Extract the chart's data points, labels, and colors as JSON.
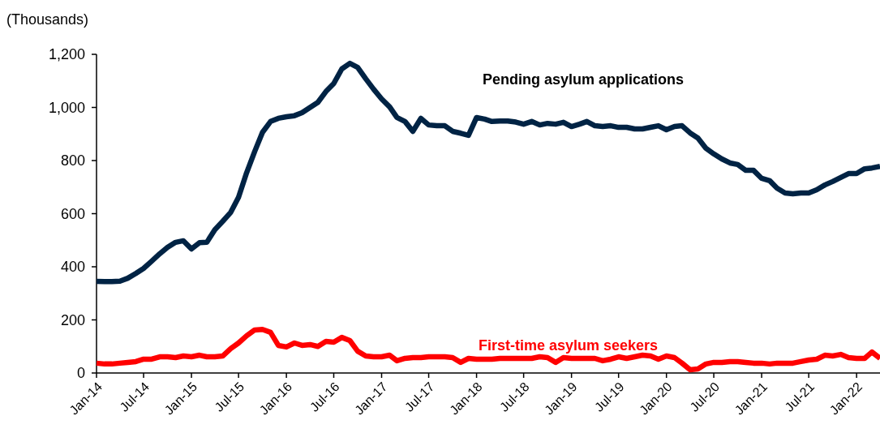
{
  "chart_data": {
    "type": "line",
    "ylabel": "(Thousands)",
    "x": [
      "2014-01",
      "2014-02",
      "2014-03",
      "2014-04",
      "2014-05",
      "2014-06",
      "2014-07",
      "2014-08",
      "2014-09",
      "2014-10",
      "2014-11",
      "2014-12",
      "2015-01",
      "2015-02",
      "2015-03",
      "2015-04",
      "2015-05",
      "2015-06",
      "2015-07",
      "2015-08",
      "2015-09",
      "2015-10",
      "2015-11",
      "2015-12",
      "2016-01",
      "2016-02",
      "2016-03",
      "2016-04",
      "2016-05",
      "2016-06",
      "2016-07",
      "2016-08",
      "2016-09",
      "2016-10",
      "2016-11",
      "2016-12",
      "2017-01",
      "2017-02",
      "2017-03",
      "2017-04",
      "2017-05",
      "2017-06",
      "2017-07",
      "2017-08",
      "2017-09",
      "2017-10",
      "2017-11",
      "2017-12",
      "2018-01",
      "2018-02",
      "2018-03",
      "2018-04",
      "2018-05",
      "2018-06",
      "2018-07",
      "2018-08",
      "2018-09",
      "2018-10",
      "2018-11",
      "2018-12",
      "2019-01",
      "2019-02",
      "2019-03",
      "2019-04",
      "2019-05",
      "2019-06",
      "2019-07",
      "2019-08",
      "2019-09",
      "2019-10",
      "2019-11",
      "2019-12",
      "2020-01",
      "2020-02",
      "2020-03",
      "2020-04",
      "2020-05",
      "2020-06",
      "2020-07",
      "2020-08",
      "2020-09",
      "2020-10",
      "2020-11",
      "2020-12",
      "2021-01",
      "2021-02",
      "2021-03",
      "2021-04",
      "2021-05",
      "2021-06",
      "2021-07",
      "2021-08",
      "2021-09",
      "2021-10",
      "2021-11",
      "2021-12",
      "2022-01",
      "2022-02",
      "2022-03",
      "2022-04"
    ],
    "series": [
      {
        "name": "Pending asylum applications",
        "color": "#002344",
        "values": [
          345,
          344,
          344,
          346,
          357,
          375,
          394,
          421,
          449,
          473,
          492,
          498,
          467,
          491,
          492,
          540,
          571,
          605,
          662,
          754,
          834,
          906,
          947,
          959,
          965,
          969,
          980,
          1000,
          1019,
          1060,
          1090,
          1145,
          1166,
          1151,
          1108,
          1069,
          1032,
          1002,
          962,
          947,
          910,
          959,
          934,
          931,
          931,
          910,
          903,
          895,
          962,
          956,
          947,
          949,
          949,
          945,
          937,
          947,
          934,
          940,
          937,
          944,
          928,
          937,
          947,
          931,
          928,
          931,
          925,
          925,
          919,
          919,
          925,
          931,
          916,
          928,
          931,
          904,
          885,
          846,
          825,
          806,
          791,
          785,
          763,
          763,
          733,
          724,
          696,
          678,
          675,
          678,
          678,
          690,
          708,
          721,
          736,
          751,
          751,
          769,
          772,
          778
        ]
      },
      {
        "name": "First-time asylum seekers",
        "color": "#ff0000",
        "values": [
          37,
          34,
          34,
          37,
          40,
          43,
          52,
          52,
          61,
          61,
          58,
          64,
          61,
          67,
          61,
          61,
          64,
          92,
          113,
          140,
          162,
          164,
          153,
          104,
          98,
          113,
          104,
          107,
          100,
          119,
          116,
          134,
          122,
          82,
          64,
          61,
          61,
          67,
          46,
          55,
          58,
          58,
          61,
          61,
          61,
          58,
          40,
          55,
          52,
          52,
          52,
          55,
          55,
          55,
          55,
          55,
          61,
          58,
          40,
          58,
          55,
          55,
          55,
          55,
          46,
          52,
          61,
          55,
          61,
          67,
          64,
          52,
          64,
          58,
          37,
          12,
          15,
          34,
          40,
          40,
          43,
          43,
          40,
          37,
          37,
          34,
          37,
          37,
          37,
          43,
          49,
          52,
          67,
          64,
          70,
          58,
          55,
          55,
          79,
          55
        ]
      }
    ],
    "xlim": [
      "2014-01",
      "2022-04"
    ],
    "xticks": [
      {
        "value": "2014-01",
        "label": "Jan-14"
      },
      {
        "value": "2014-07",
        "label": "Jul-14"
      },
      {
        "value": "2015-01",
        "label": "Jan-15"
      },
      {
        "value": "2015-07",
        "label": "Jul-15"
      },
      {
        "value": "2016-01",
        "label": "Jan-16"
      },
      {
        "value": "2016-07",
        "label": "Jul-16"
      },
      {
        "value": "2017-01",
        "label": "Jan-17"
      },
      {
        "value": "2017-07",
        "label": "Jul-17"
      },
      {
        "value": "2018-01",
        "label": "Jan-18"
      },
      {
        "value": "2018-07",
        "label": "Jul-18"
      },
      {
        "value": "2019-01",
        "label": "Jan-19"
      },
      {
        "value": "2019-07",
        "label": "Jul-19"
      },
      {
        "value": "2020-01",
        "label": "Jan-20"
      },
      {
        "value": "2020-07",
        "label": "Jul-20"
      },
      {
        "value": "2021-01",
        "label": "Jan-21"
      },
      {
        "value": "2021-07",
        "label": "Jul-21"
      },
      {
        "value": "2022-01",
        "label": "Jan-22"
      }
    ],
    "ylim": [
      0,
      1200
    ],
    "yticks": [
      0,
      200,
      400,
      600,
      800,
      {
        "value": 1000,
        "label": "1,000"
      },
      {
        "value": 1200,
        "label": "1,200"
      }
    ],
    "grid": false,
    "legend": false,
    "marker": "none",
    "line_style": "solid"
  }
}
